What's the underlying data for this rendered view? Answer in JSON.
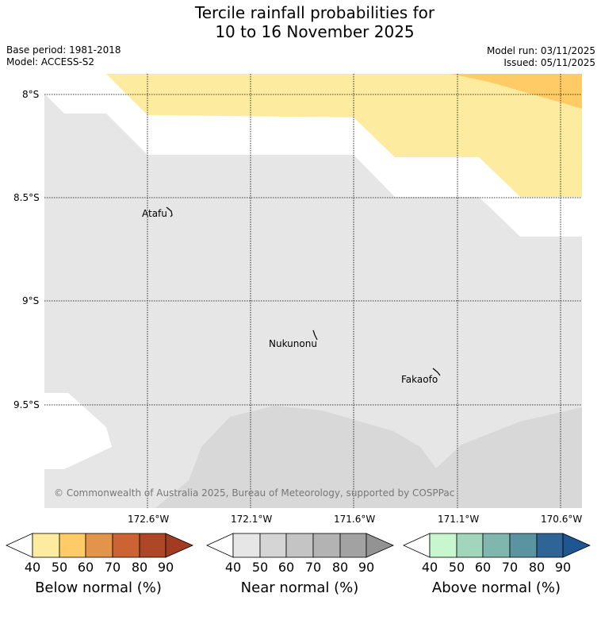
{
  "title": {
    "line1": "Tercile rainfall probabilities for",
    "line2": "10 to 16 November 2025"
  },
  "meta": {
    "base_period": "Base period: 1981-2018",
    "model": "Model: ACCESS-S2",
    "model_run": "Model run: 03/11/2025",
    "issued": "Issued: 05/11/2025"
  },
  "map": {
    "lat_labels": [
      "8°S",
      "8.5°S",
      "9°S",
      "9.5°S"
    ],
    "lon_labels": [
      "172.6°W",
      "172.1°W",
      "171.6°W",
      "171.1°W",
      "170.6°W"
    ],
    "places": [
      "Atafu",
      "Nukunonu",
      "Fakaofo"
    ],
    "copyright": "© Commonwealth of Australia 2025, Bureau of Meteorology, supported by COSPPac",
    "colors": {
      "below_40": "#fdeca0",
      "below_50_band": "#fecb66",
      "near_40": "#e6e6e6",
      "near_50": "#d6d6d6"
    }
  },
  "colorbars": [
    {
      "label": "Below normal (%)",
      "ticks": [
        "40",
        "50",
        "60",
        "70",
        "80",
        "90"
      ],
      "colors": [
        "#fdeca0",
        "#fecb66",
        "#e2944a",
        "#cb6432",
        "#ad4728",
        "#a33a22"
      ]
    },
    {
      "label": "Near normal (%)",
      "ticks": [
        "40",
        "50",
        "60",
        "70",
        "80",
        "90"
      ],
      "colors": [
        "#e6e6e6",
        "#d5d5d5",
        "#c4c4c4",
        "#b3b3b3",
        "#a2a2a2",
        "#939393"
      ]
    },
    {
      "label": "Above normal (%)",
      "ticks": [
        "40",
        "50",
        "60",
        "70",
        "80",
        "90"
      ],
      "colors": [
        "#c8f6cf",
        "#a1d6bc",
        "#7fb6ae",
        "#5b94a1",
        "#2e6596",
        "#1f5591"
      ]
    }
  ]
}
